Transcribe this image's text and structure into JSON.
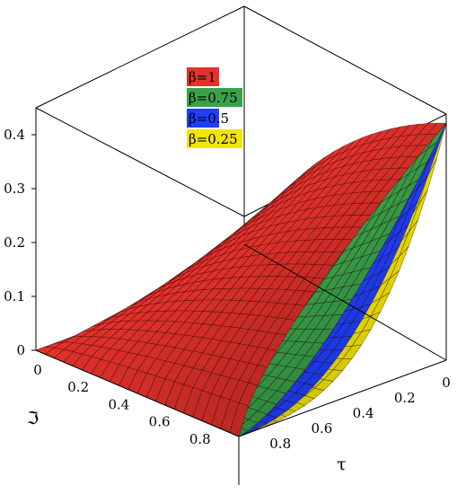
{
  "chart_data": {
    "type": "surface3d",
    "title": "",
    "xlabel": "ℑ",
    "ylabel": "τ",
    "zlabel": "",
    "xlim": [
      0,
      1
    ],
    "ylim": [
      0,
      1
    ],
    "zlim": [
      0,
      0.45
    ],
    "x_ticks": [
      "0",
      "0.2",
      "0.4",
      "0.6",
      "0.8"
    ],
    "y_ticks": [
      "0",
      "0.2",
      "0.4",
      "0.6",
      "0.8"
    ],
    "z_ticks": [
      "0",
      "0.1",
      "0.2",
      "0.3",
      "0.4"
    ],
    "grid": false,
    "legend_position": "top-center",
    "series": [
      {
        "name": "β=1",
        "color": "#e3312b",
        "beta": 1
      },
      {
        "name": "β=0.75",
        "color": "#3aa34a",
        "beta": 0.75
      },
      {
        "name": "β=0.5",
        "color": "#1f3fff",
        "beta": 0.5
      },
      {
        "name": "β=0.25",
        "color": "#f2e600",
        "beta": 0.25
      }
    ],
    "corner_values": {
      "x0_y0": 0,
      "x1_y0": 0,
      "x0_y1": 0,
      "x1_y1": 0.44
    }
  }
}
